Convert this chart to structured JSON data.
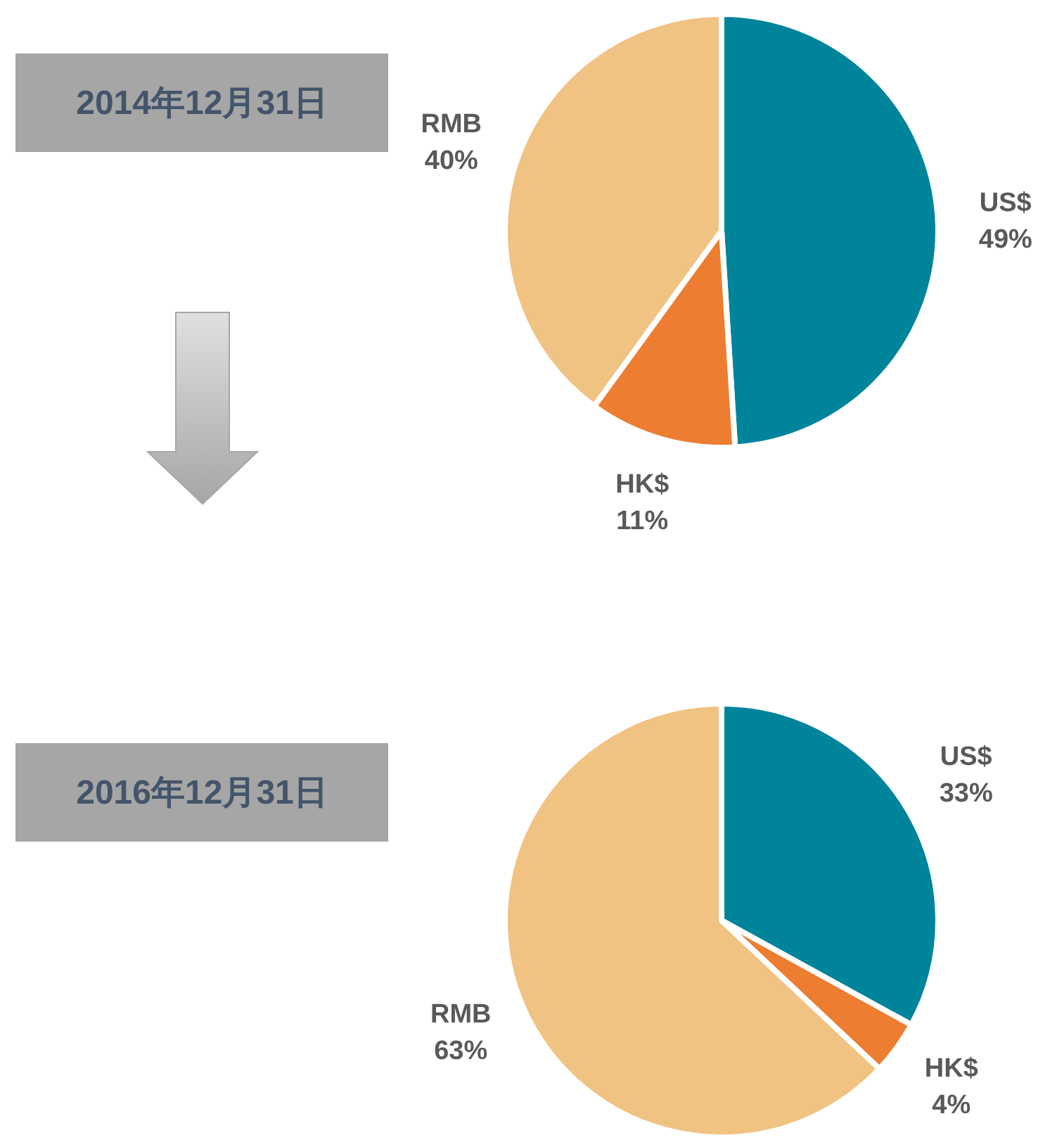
{
  "chart_data": [
    {
      "type": "pie",
      "title": "2014年12月31日",
      "categories": [
        "US$",
        "HK$",
        "RMB"
      ],
      "values": [
        49,
        11,
        40
      ],
      "colors": [
        "#00849c",
        "#ed7d31",
        "#f0c383"
      ],
      "value_labels": [
        "49%",
        "11%",
        "40%"
      ]
    },
    {
      "type": "pie",
      "title": "2016年12月31日",
      "categories": [
        "US$",
        "HK$",
        "RMB"
      ],
      "values": [
        33,
        4,
        63
      ],
      "colors": [
        "#00849c",
        "#ed7d31",
        "#f0c383"
      ],
      "value_labels": [
        "33%",
        "4%",
        "63%"
      ]
    }
  ]
}
